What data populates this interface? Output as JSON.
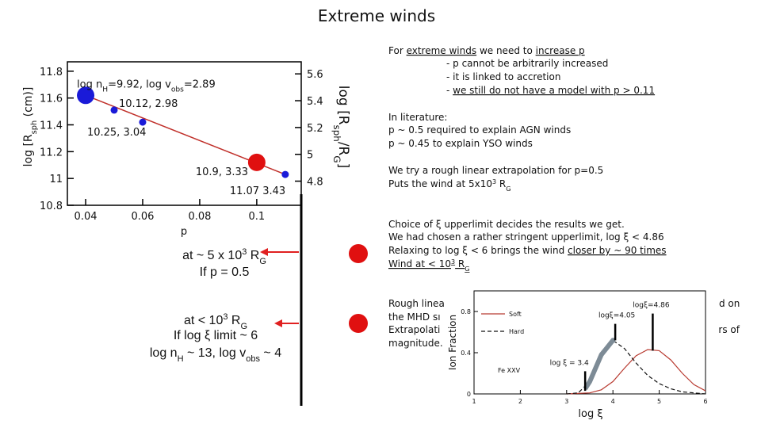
{
  "slide_title": "Extreme winds",
  "notes": {
    "p1": [
      "For ",
      "extreme winds",
      " we need to ",
      "increase p"
    ],
    "p1_items": [
      "- p cannot be arbitrarily increased",
      "- it is linked to accretion",
      [
        "- ",
        "we still do not have a model with p > 0.11"
      ]
    ],
    "p2": [
      "In literature:",
      "p ~ 0.5 required to explain AGN winds",
      "p ~ 0.45 to explain YSO winds"
    ],
    "p3": [
      "We try a rough linear extrapolation for p=0.5",
      [
        "Puts the wind at 5x10",
        "3",
        " R",
        "G"
      ]
    ],
    "p4": [
      "Choice of ξ upperlimit decides the results we get.",
      "We had chosen a rather stringent upperlimit, log ξ < 4.86",
      [
        "Relaxing to log ξ < 6 brings the wind ",
        "closer by ~ 90 times"
      ],
      [
        "Wind at < 10",
        "3",
        " R",
        "G"
      ]
    ],
    "p5": [
      "Rough linea",
      "the MHD sı",
      "Extrapolati",
      "magnitude."
    ],
    "p5_right": [
      "d on",
      "ers of"
    ]
  },
  "callout_1": {
    "line1": [
      "at ~ 5 x 10",
      "3",
      " R",
      "G"
    ],
    "line2": "If p = 0.5"
  },
  "callout_2": {
    "line1": [
      "at < 10",
      "3",
      " R",
      "G"
    ],
    "line2": [
      "If log ",
      "ξ",
      " limit ~ 6"
    ],
    "line3": [
      "log n",
      "H",
      " ~ 13, log v",
      "obs",
      " ~ 4"
    ]
  },
  "chart_data": [
    {
      "type": "scatter",
      "xlabel": "p",
      "ylabel": [
        "log [R",
        "sph",
        " (cm)]"
      ],
      "y2label": [
        "log [R",
        "sph",
        "/R",
        "G",
        "]"
      ],
      "xlim": [
        0.0336,
        0.1156
      ],
      "xticks": [
        0.04,
        0.06,
        0.08,
        0.1
      ],
      "ylim": [
        10.8,
        11.87
      ],
      "yticks": [
        10.8,
        11,
        11.2,
        11.4,
        11.6,
        11.8
      ],
      "y2lim": [
        4.62,
        5.69
      ],
      "y2ticks": [
        4.8,
        5,
        5.2,
        5.4,
        5.6
      ],
      "series": [
        {
          "kind": "line",
          "color": "#c0302a",
          "x": [
            0.04,
            0.11
          ],
          "values": [
            11.62,
            11.03
          ]
        },
        {
          "kind": "points",
          "color": "#1a1ad8",
          "x": [
            0.04,
            0.05,
            0.06,
            0.11
          ],
          "values": [
            11.62,
            11.51,
            11.42,
            11.03
          ],
          "marker_sizes": [
            11,
            4.5,
            4.5,
            4.5
          ],
          "labels": [
            [
              "log n",
              "H",
              "=9.92,  log v",
              "obs",
              "=2.89"
            ],
            "10.12,  2.98",
            "10.25,  3.04",
            "11.07  3.43"
          ]
        },
        {
          "kind": "points",
          "color": "#e01010",
          "x": [
            0.1
          ],
          "values": [
            11.12
          ],
          "marker_sizes": [
            11
          ],
          "labels": [
            "10.9,  3.33"
          ]
        }
      ]
    },
    {
      "type": "line",
      "xlabel": "log ξ",
      "ylabel": "Ion Fraction",
      "xlim": [
        1,
        6
      ],
      "xticks": [
        1,
        2,
        3,
        4,
        5,
        6
      ],
      "ylim": [
        0,
        1
      ],
      "yticks": [
        0,
        0.4,
        0.8
      ],
      "series": [
        {
          "name": "Soft",
          "color": "#b83a30",
          "linestyle": "solid",
          "linewidth": 1.2,
          "x": [
            3.0,
            3.5,
            3.75,
            4.0,
            4.25,
            4.5,
            4.75,
            5.0,
            5.25,
            5.5,
            5.75,
            6.0
          ],
          "values": [
            0,
            0.01,
            0.04,
            0.12,
            0.25,
            0.37,
            0.43,
            0.42,
            0.33,
            0.2,
            0.09,
            0.03
          ]
        },
        {
          "name": "Hard",
          "color": "#111111",
          "linestyle": "dashed",
          "linewidth": 1.2,
          "x": [
            3.0,
            3.25,
            3.5,
            3.75,
            4.0,
            4.25,
            4.5,
            4.75,
            5.0,
            5.25,
            5.5,
            5.75,
            6.0
          ],
          "values": [
            0,
            0.01,
            0.12,
            0.38,
            0.52,
            0.44,
            0.3,
            0.18,
            0.1,
            0.05,
            0.02,
            0.01,
            0
          ]
        },
        {
          "color": "#7d8b96",
          "linestyle": "solid",
          "linewidth": 6,
          "x": [
            3.4,
            3.5,
            3.75,
            4.0,
            4.05
          ],
          "values": [
            0.05,
            0.12,
            0.38,
            0.52,
            0.52
          ]
        }
      ],
      "annotations": [
        {
          "text": "logξ=4.86",
          "x": 4.86,
          "y": [
            0.42,
            0.78
          ]
        },
        {
          "text": "logξ=4.05",
          "x": 4.05,
          "y": [
            0.52,
            0.68
          ]
        },
        {
          "text": "log ξ = 3.4",
          "x": 3.4,
          "y": [
            0.03,
            0.22
          ]
        }
      ],
      "label": "Fe XXV"
    }
  ]
}
